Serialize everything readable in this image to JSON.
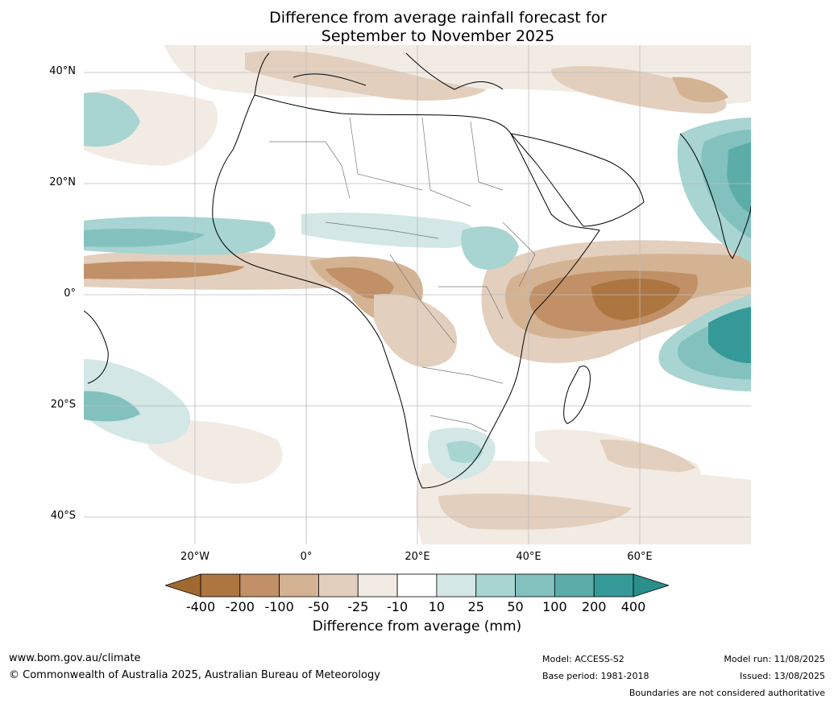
{
  "title": {
    "line1": "Difference from average rainfall forecast for",
    "line2": "September to November 2025"
  },
  "axes": {
    "lat_labels": [
      "40°N",
      "20°N",
      "0°",
      "20°S",
      "40°S"
    ],
    "lon_labels": [
      "20°W",
      "0°",
      "20°E",
      "40°E",
      "60°E"
    ],
    "lat_values": [
      40,
      20,
      0,
      -20,
      -40
    ],
    "lon_values": [
      -20,
      0,
      20,
      40,
      60
    ],
    "lat_range": [
      -45,
      45
    ],
    "lon_range": [
      -40,
      80
    ]
  },
  "colorbar": {
    "title": "Difference from average (mm)",
    "tick_labels": [
      "-400",
      "-200",
      "-100",
      "-50",
      "-25",
      "-10",
      "10",
      "25",
      "50",
      "100",
      "200",
      "400"
    ],
    "colors": [
      "#a0692f",
      "#ad7540",
      "#c19066",
      "#d4b393",
      "#e3cfbd",
      "#f2ebe4",
      "#ffffff",
      "#d2e7e6",
      "#a8d4d2",
      "#82c1be",
      "#5cadaa",
      "#359a97",
      "#2a8e8a"
    ]
  },
  "footer": {
    "site": "www.bom.gov.au/climate",
    "copyright": "© Commonwealth of Australia 2025, Australian Bureau of Meteorology",
    "model": "Model: ACCESS-S2",
    "base_period": "Base period: 1981-2018",
    "model_run": "Model run: 11/08/2025",
    "issued": "Issued: 13/08/2025",
    "boundaries": "Boundaries are not considered authoritative"
  }
}
